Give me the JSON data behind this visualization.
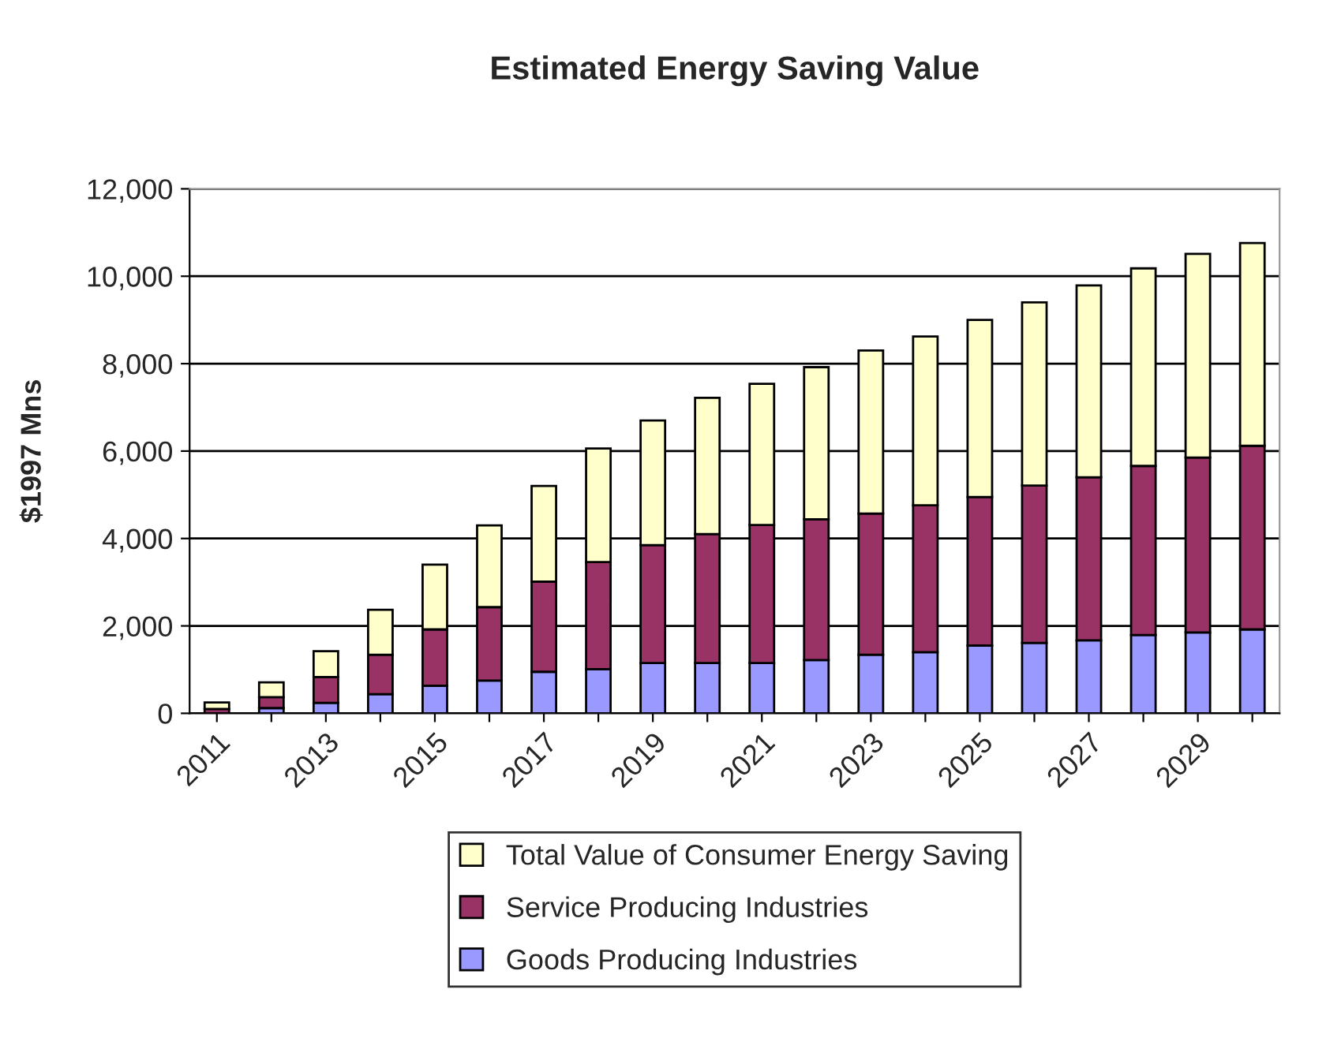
{
  "chart_data": {
    "type": "bar",
    "title": "Estimated Energy Saving Value",
    "ylabel": "$1997 Mns",
    "stacked": true,
    "categories": [
      "2011",
      null,
      "2013",
      null,
      "2015",
      null,
      "2017",
      null,
      "2019",
      null,
      "2021",
      null,
      "2023",
      null,
      "2025",
      null,
      "2027",
      null,
      "2029",
      null
    ],
    "series": [
      {
        "name": "Goods Producing Industries",
        "color": "#9999ff",
        "values": [
          null,
          120,
          240,
          440,
          630,
          750,
          950,
          1010,
          1150,
          1150,
          1150,
          1220,
          1340,
          1400,
          1550,
          1610,
          1670,
          1790,
          1850,
          1920
        ]
      },
      {
        "name": "Service Producing Industries",
        "color": "#993366",
        "values": [
          100,
          250,
          590,
          900,
          1290,
          1680,
          2065,
          2450,
          2700,
          2950,
          3160,
          3220,
          3230,
          3360,
          3400,
          3600,
          3730,
          3870,
          4000,
          4200
        ]
      },
      {
        "name": "Total Value of Consumer Energy Saving",
        "color": "#ffffcc",
        "values": [
          150,
          340,
          590,
          1030,
          1480,
          1870,
          2185,
          2600,
          2850,
          3120,
          3230,
          3480,
          3730,
          3860,
          4050,
          4190,
          4390,
          4520,
          4660,
          4640
        ]
      }
    ],
    "ylim": [
      0,
      12000
    ],
    "yticks": [
      {
        "value": 0,
        "label": "0"
      },
      {
        "value": 2000,
        "label": "2,000"
      },
      {
        "value": 4000,
        "label": "4,000"
      },
      {
        "value": 6000,
        "label": "6,000"
      },
      {
        "value": 8000,
        "label": "8,000"
      },
      {
        "value": 10000,
        "label": "10,000"
      },
      {
        "value": 12000,
        "label": "12,000"
      }
    ],
    "grid": "y",
    "legend": "bottom"
  }
}
